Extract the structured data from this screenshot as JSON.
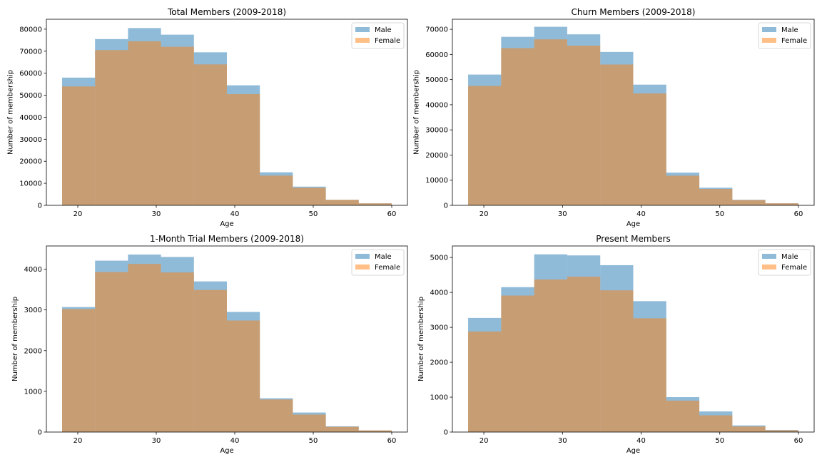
{
  "chart_data": [
    {
      "type": "bar",
      "title": "Total Members (2009-2018)",
      "xlabel": "Age",
      "ylabel": "Number of membership",
      "bin_edges": [
        18,
        22.2,
        26.4,
        30.6,
        34.8,
        39,
        43.2,
        47.4,
        51.6,
        55.8,
        60
      ],
      "xlim": [
        16,
        62
      ],
      "ylim": [
        0,
        84500
      ],
      "xticks": [
        20,
        30,
        40,
        50,
        60
      ],
      "yticks": [
        0,
        10000,
        20000,
        30000,
        40000,
        50000,
        60000,
        70000,
        80000
      ],
      "legend": "top-right",
      "series": [
        {
          "name": "Male",
          "color": "#1f77b4",
          "values": [
            58000,
            75500,
            80500,
            77500,
            69500,
            54500,
            15000,
            8500,
            2500,
            900
          ]
        },
        {
          "name": "Female",
          "color": "#ff7f0e",
          "values": [
            54000,
            70500,
            74500,
            72000,
            64000,
            50500,
            13500,
            8000,
            2500,
            900
          ]
        }
      ]
    },
    {
      "type": "bar",
      "title": "Churn Members (2009-2018)",
      "xlabel": "Age",
      "ylabel": "Number of membership",
      "bin_edges": [
        18,
        22.2,
        26.4,
        30.6,
        34.8,
        39,
        43.2,
        47.4,
        51.6,
        55.8,
        60
      ],
      "xlim": [
        16,
        62
      ],
      "ylim": [
        0,
        74000
      ],
      "xticks": [
        20,
        30,
        40,
        50,
        60
      ],
      "yticks": [
        0,
        10000,
        20000,
        30000,
        40000,
        50000,
        60000,
        70000
      ],
      "legend": "top-right",
      "series": [
        {
          "name": "Male",
          "color": "#1f77b4",
          "values": [
            52000,
            67000,
            71000,
            68000,
            61000,
            48000,
            13000,
            7000,
            2200,
            800
          ]
        },
        {
          "name": "Female",
          "color": "#ff7f0e",
          "values": [
            47500,
            62500,
            66000,
            63500,
            56000,
            44500,
            11800,
            6500,
            2100,
            800
          ]
        }
      ]
    },
    {
      "type": "bar",
      "title": "1-Month Trial Members (2009-2018)",
      "xlabel": "Age",
      "ylabel": "Number of membership",
      "bin_edges": [
        18,
        22.2,
        26.4,
        30.6,
        34.8,
        39,
        43.2,
        47.4,
        51.6,
        55.8,
        60
      ],
      "xlim": [
        16,
        62
      ],
      "ylim": [
        0,
        4570
      ],
      "xticks": [
        20,
        30,
        40,
        50,
        60
      ],
      "yticks": [
        0,
        1000,
        2000,
        3000,
        4000
      ],
      "legend": "top-right",
      "series": [
        {
          "name": "Male",
          "color": "#1f77b4",
          "values": [
            3070,
            4210,
            4360,
            4300,
            3700,
            2950,
            830,
            480,
            140,
            40
          ]
        },
        {
          "name": "Female",
          "color": "#ff7f0e",
          "values": [
            3020,
            3930,
            4130,
            3920,
            3490,
            2740,
            800,
            430,
            130,
            40
          ]
        }
      ]
    },
    {
      "type": "bar",
      "title": "Present Members",
      "xlabel": "Age",
      "ylabel": "Number of membership",
      "bin_edges": [
        18,
        22.2,
        26.4,
        30.6,
        34.8,
        39,
        43.2,
        47.4,
        51.6,
        55.8,
        60
      ],
      "xlim": [
        16,
        62
      ],
      "ylim": [
        0,
        5330
      ],
      "xticks": [
        20,
        30,
        40,
        50,
        60
      ],
      "yticks": [
        0,
        1000,
        2000,
        3000,
        4000,
        5000
      ],
      "legend": "top-right",
      "series": [
        {
          "name": "Male",
          "color": "#1f77b4",
          "values": [
            3270,
            4150,
            5090,
            5060,
            4780,
            3750,
            1000,
            590,
            190,
            60
          ]
        },
        {
          "name": "Female",
          "color": "#ff7f0e",
          "values": [
            2880,
            3910,
            4370,
            4450,
            4060,
            3260,
            900,
            480,
            160,
            50
          ]
        }
      ]
    }
  ]
}
